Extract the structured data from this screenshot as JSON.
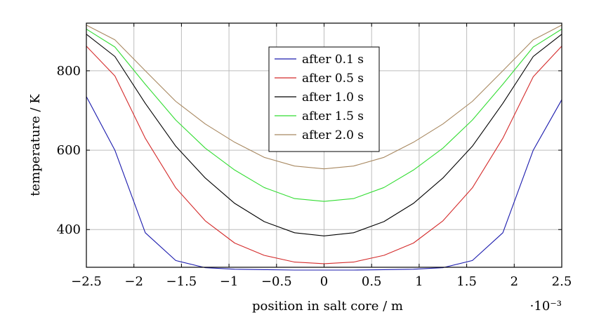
{
  "chart_data": {
    "type": "line",
    "xlabel": "position in salt core / m",
    "ylabel": "temperature / K",
    "x_multiplier_label": "·10⁻³",
    "x_scale": 0.001,
    "xlim": [
      -0.0025,
      0.0025
    ],
    "ylim": [
      305,
      920
    ],
    "x_ticks": [
      -0.0025,
      -0.002,
      -0.0015,
      -0.001,
      -0.0005,
      0,
      0.0005,
      0.001,
      0.0015,
      0.002,
      0.0025
    ],
    "x_tick_labels": [
      "−2.5",
      "−2",
      "−1.5",
      "−1",
      "−0.5",
      "0",
      "0.5",
      "1",
      "1.5",
      "2",
      "2.5"
    ],
    "y_ticks": [
      400,
      600,
      800
    ],
    "y_tick_labels": [
      "400",
      "600",
      "800"
    ],
    "grid": true,
    "legend_position": "top-center",
    "x": [
      -0.0025,
      -0.0022,
      -0.00188,
      -0.00156,
      -0.00125,
      -0.00094,
      -0.00063,
      -0.00031,
      0,
      0.00031,
      0.00063,
      0.00094,
      0.00125,
      0.00156,
      0.00188,
      0.0022,
      0.0025
    ],
    "series": [
      {
        "name": "after 0.1 s",
        "color": "#1a1aad",
        "values": [
          735,
          600,
          392,
          322,
          304,
          300,
          299,
          298,
          298,
          298,
          299,
          300,
          304,
          322,
          392,
          600,
          727
        ]
      },
      {
        "name": "after 0.5 s",
        "color": "#d42a2a",
        "values": [
          862,
          787,
          630,
          505,
          422,
          366,
          335,
          318,
          314,
          318,
          335,
          366,
          422,
          505,
          630,
          785,
          862
        ]
      },
      {
        "name": "after 1.0 s",
        "color": "#000000",
        "values": [
          892,
          836,
          718,
          610,
          530,
          466,
          420,
          392,
          384,
          392,
          420,
          466,
          530,
          610,
          718,
          836,
          892
        ]
      },
      {
        "name": "after 1.5 s",
        "color": "#33dd33",
        "values": [
          905,
          860,
          766,
          676,
          605,
          550,
          506,
          478,
          471,
          478,
          506,
          550,
          605,
          676,
          766,
          860,
          905
        ]
      },
      {
        "name": "after 2.0 s",
        "color": "#a88860",
        "values": [
          915,
          878,
          800,
          723,
          666,
          620,
          582,
          560,
          553,
          560,
          582,
          620,
          666,
          723,
          800,
          878,
          915
        ]
      }
    ]
  }
}
